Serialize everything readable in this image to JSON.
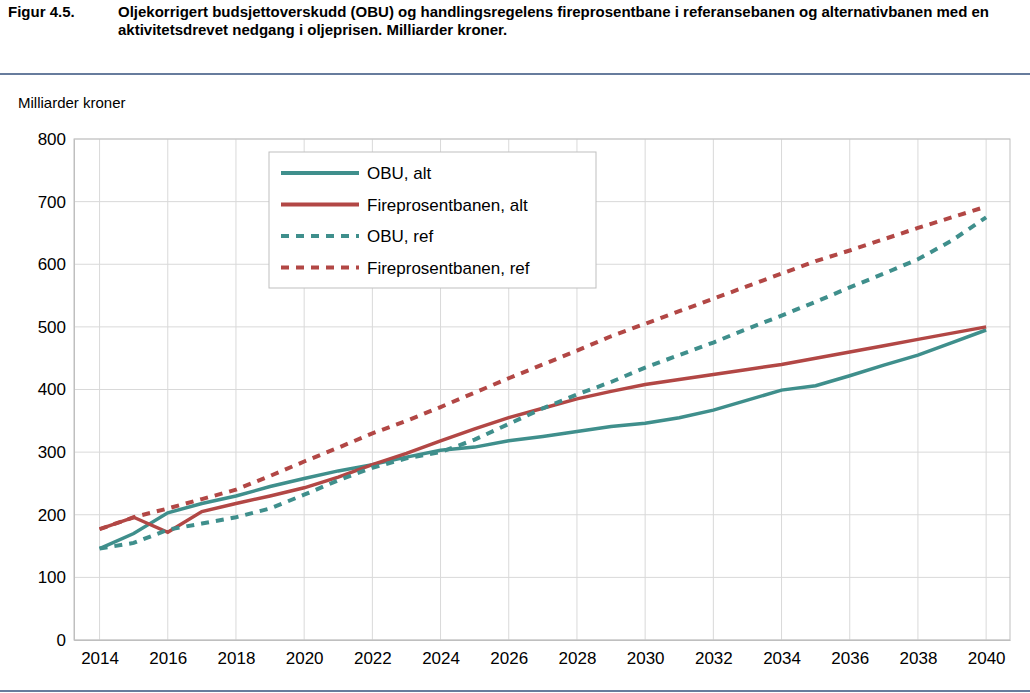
{
  "chart_data": {
    "type": "line",
    "annotations": [
      "Figur 4.5."
    ],
    "title": "Oljekorrigert budsjettoverskudd (OBU) og handlingsregelens fireprosentbane i referansebanen og alternativbanen med en aktivitetsdrevet nedgang i oljeprisen. Milliarder kroner.",
    "y_label": "Milliarder kroner",
    "x": [
      2014,
      2015,
      2016,
      2017,
      2018,
      2019,
      2020,
      2021,
      2022,
      2023,
      2024,
      2025,
      2026,
      2027,
      2028,
      2029,
      2030,
      2031,
      2032,
      2033,
      2034,
      2035,
      2036,
      2037,
      2038,
      2039,
      2040
    ],
    "xlim": [
      2013.25,
      2040.7
    ],
    "xticks": [
      2014,
      2016,
      2018,
      2020,
      2022,
      2024,
      2026,
      2028,
      2030,
      2032,
      2034,
      2036,
      2038,
      2040
    ],
    "ylim": [
      0,
      800
    ],
    "yticks": [
      0,
      100,
      200,
      300,
      400,
      500,
      600,
      700,
      800
    ],
    "grid": true,
    "legend": "top-left",
    "series": [
      {
        "name": "OBU, alt",
        "color": "#3f8f8c",
        "line_style": "solid",
        "values": [
          146,
          170,
          203,
          218,
          230,
          245,
          258,
          270,
          280,
          292,
          303,
          308,
          318,
          325,
          333,
          341,
          346,
          355,
          367,
          383,
          399,
          406,
          422,
          439,
          455,
          475,
          495
        ]
      },
      {
        "name": "Fireprosentbanen, alt",
        "color": "#b24745",
        "line_style": "solid",
        "values": [
          177,
          196,
          172,
          205,
          218,
          230,
          243,
          260,
          280,
          298,
          318,
          337,
          355,
          370,
          385,
          397,
          408,
          416,
          424,
          432,
          440,
          450,
          460,
          470,
          480,
          490,
          500
        ]
      },
      {
        "name": "OBU, ref",
        "color": "#3f8f8c",
        "line_style": "dashed",
        "values": [
          146,
          155,
          176,
          186,
          196,
          210,
          232,
          255,
          275,
          290,
          300,
          320,
          345,
          370,
          392,
          412,
          435,
          455,
          475,
          497,
          518,
          540,
          563,
          585,
          608,
          638,
          675
        ]
      },
      {
        "name": "Fireprosentbanen, ref",
        "color": "#b24745",
        "line_style": "dashed",
        "values": [
          177,
          196,
          210,
          225,
          240,
          262,
          285,
          307,
          330,
          350,
          372,
          395,
          418,
          440,
          462,
          485,
          505,
          525,
          545,
          565,
          585,
          605,
          622,
          640,
          658,
          675,
          692
        ]
      }
    ]
  }
}
